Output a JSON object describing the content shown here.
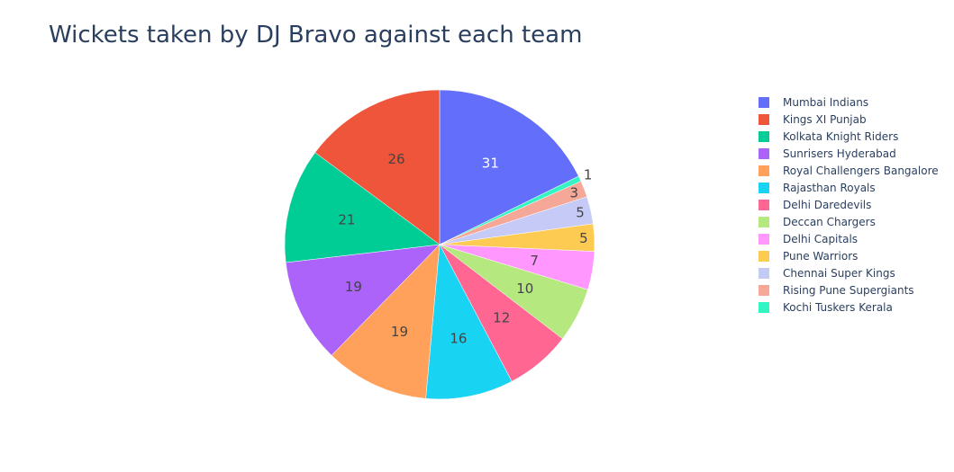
{
  "chart_data": {
    "type": "pie",
    "title": "Wickets taken by DJ Bravo against each team",
    "categories": [
      "Mumbai Indians",
      "Kings XI Punjab",
      "Kolkata Knight Riders",
      "Sunrisers Hyderabad",
      "Royal Challengers Bangalore",
      "Rajasthan Royals",
      "Delhi Daredevils",
      "Deccan Chargers",
      "Delhi Capitals",
      "Pune Warriors",
      "Chennai Super Kings",
      "Rising Pune Supergiants",
      "Kochi Tuskers Kerala"
    ],
    "values": [
      31,
      26,
      21,
      19,
      19,
      16,
      12,
      10,
      7,
      5,
      5,
      3,
      1
    ],
    "colors": [
      "#636efa",
      "#EF553B",
      "#00cc96",
      "#ab63fa",
      "#FFA15A",
      "#19d3f3",
      "#FF6692",
      "#B6E880",
      "#FF97FF",
      "#FECB52",
      "#c6caf7",
      "#f5a898",
      "#33f5c4"
    ],
    "slice_order": [
      0,
      12,
      11,
      10,
      9,
      8,
      7,
      6,
      5,
      4,
      3,
      2,
      1
    ],
    "direction": "clockwise",
    "legend_position": "right"
  }
}
